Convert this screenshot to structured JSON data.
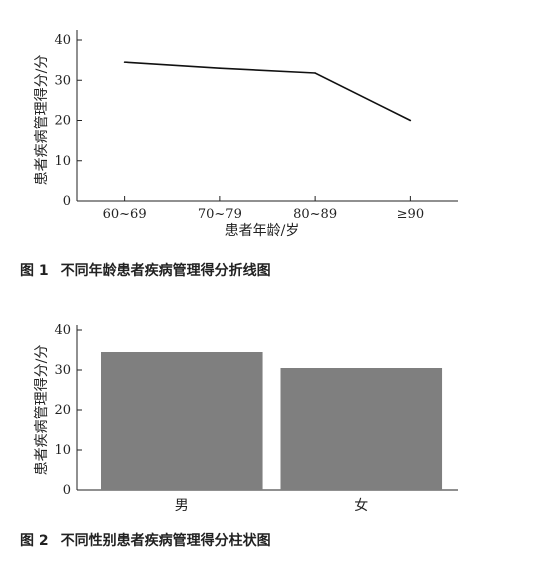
{
  "chart_data": [
    {
      "type": "line",
      "categories": [
        "60~69",
        "70~79",
        "80~89",
        "≥90"
      ],
      "series": [
        {
          "values": [
            34.5,
            33,
            31.8,
            20
          ]
        }
      ],
      "xlabel": "患者年龄/岁",
      "ylabel": "患者疾病管理得分/分",
      "ylim": [
        0,
        40
      ],
      "yticks": [
        "0",
        "10",
        "20",
        "30",
        "40"
      ],
      "grid": false
    },
    {
      "type": "bar",
      "categories": [
        "男",
        "女"
      ],
      "series": [
        {
          "values": [
            34.5,
            30.5
          ],
          "color": "#7f7f7f"
        }
      ],
      "xlabel": "",
      "ylabel": "患者疾病管理得分/分",
      "ylim": [
        0,
        40
      ],
      "yticks": [
        "0",
        "10",
        "20",
        "30",
        "40"
      ],
      "grid": false
    }
  ],
  "figure1": {
    "number": "图 1",
    "title": "不同年龄患者疾病管理得分折线图"
  },
  "figure2": {
    "number": "图 2",
    "title": "不同性别患者疾病管理得分柱状图"
  }
}
